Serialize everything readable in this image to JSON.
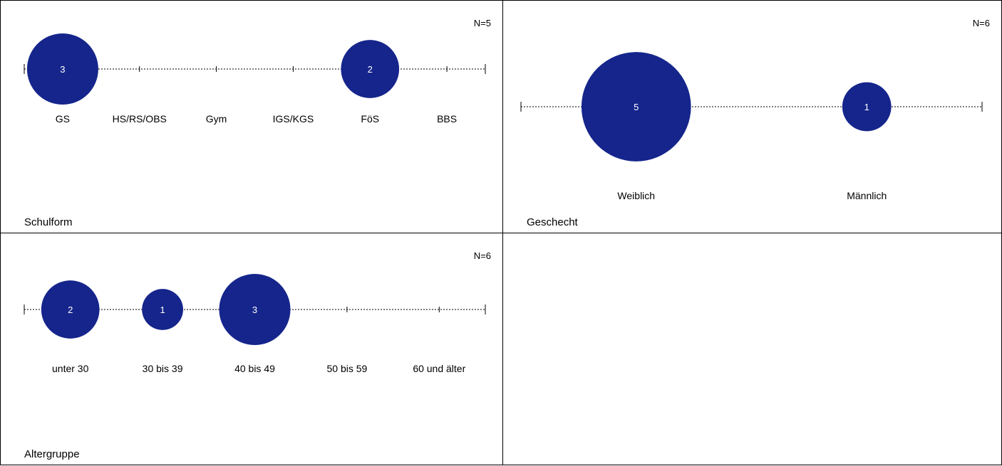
{
  "chart_data": [
    {
      "type": "bubble",
      "title": "Schulform",
      "n_label": "N=5",
      "categories": [
        "GS",
        "HS/RS/OBS",
        "Gym",
        "IGS/KGS",
        "FöS",
        "BBS"
      ],
      "values": [
        3,
        0,
        0,
        0,
        2,
        0
      ],
      "color": "#15258b"
    },
    {
      "type": "bubble",
      "title": "Geschecht",
      "n_label": "N=6",
      "categories": [
        "Weiblich",
        "Männlich"
      ],
      "values": [
        5,
        1
      ],
      "color": "#15258b"
    },
    {
      "type": "bubble",
      "title": "Altergruppe",
      "n_label": "N=6",
      "categories": [
        "unter 30",
        "30 bis 39",
        "40 bis 49",
        "50 bis 59",
        "60 und älter"
      ],
      "values": [
        2,
        1,
        3,
        0,
        0
      ],
      "color": "#15258b"
    }
  ]
}
